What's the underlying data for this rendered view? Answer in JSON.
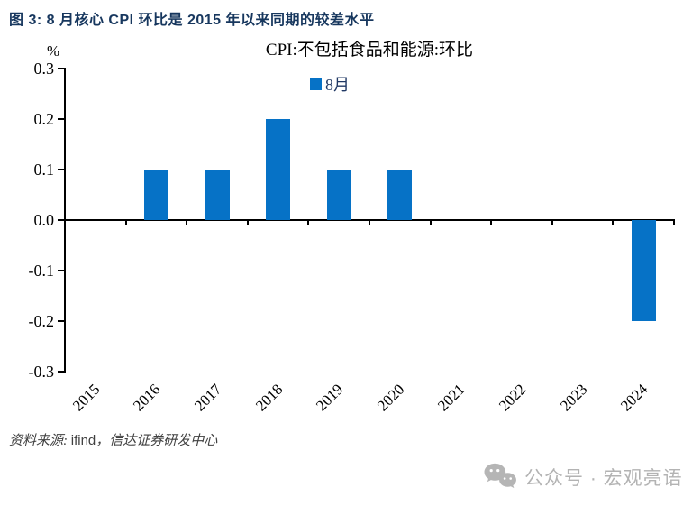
{
  "page": {
    "title": "图 3: 8 月核心 CPI 环比是 2015 年以来同期的较差水平",
    "source": {
      "prefix": "资料来源: ",
      "brand": "ifind",
      "suffix": "，信达证券研发中心"
    },
    "watermark": "公众号 · 宏观亮语"
  },
  "chart_data": {
    "type": "bar",
    "title": "CPI:不包括食品和能源:环比",
    "unit_label": "%",
    "legend": [
      {
        "label": "8月",
        "color": "#0672C6"
      }
    ],
    "legend_position": "top-center",
    "categories": [
      "2015",
      "2016",
      "2017",
      "2018",
      "2019",
      "2020",
      "2021",
      "2022",
      "2023",
      "2024"
    ],
    "values": [
      0,
      0.1,
      0.1,
      0.2,
      0.1,
      0.1,
      0,
      0,
      0,
      -0.2
    ],
    "ylim": [
      -0.3,
      0.3
    ],
    "ytick_values": [
      0.3,
      0.2,
      0.1,
      0.0,
      -0.1,
      -0.2,
      -0.3
    ],
    "grid": false,
    "colors": {
      "bar": "#0672C6",
      "title": "#17375E",
      "axis": "#000000",
      "source_text": "#404040",
      "watermark": "#b3b3b3"
    }
  }
}
